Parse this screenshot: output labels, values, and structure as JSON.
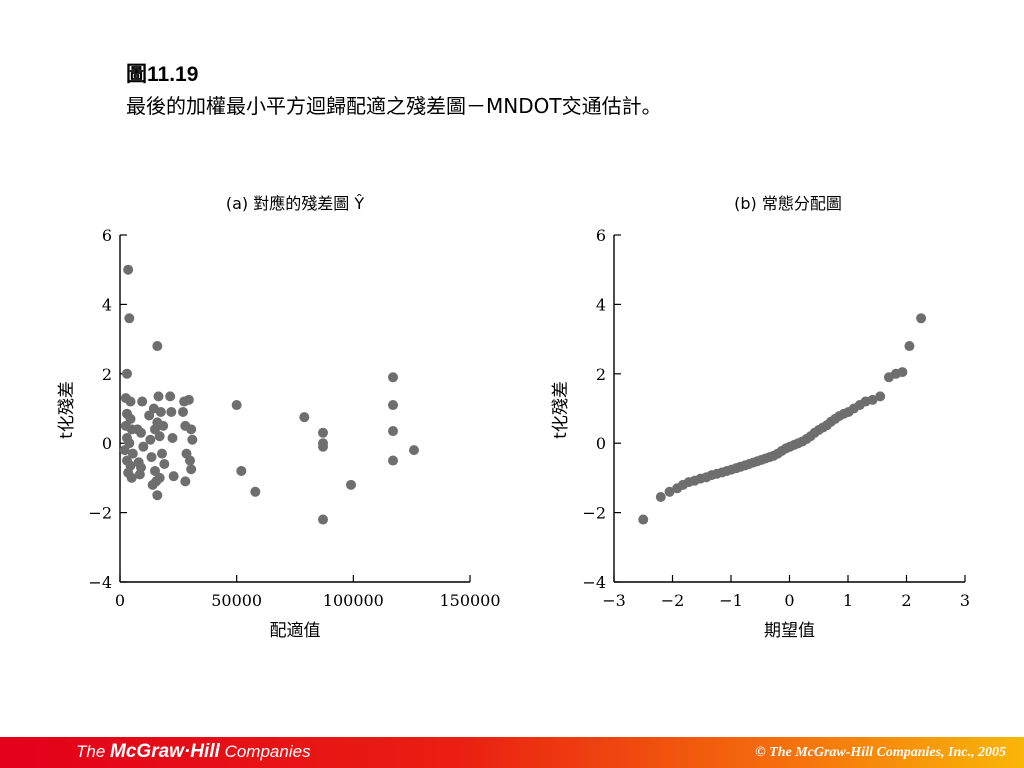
{
  "slide": {
    "title": "圖11.19",
    "subtitle": "最後的加權最小平方迴歸配適之殘差圖－MNDOT交通估計。"
  },
  "footer": {
    "logo_pre": "The",
    "logo_brand": "McGraw·Hill",
    "logo_post": "Companies",
    "copyright": "© The McGraw-Hill Companies, Inc., 2005"
  },
  "colors": {
    "point": "#6e6e6e",
    "axis": "#000000",
    "footer_start": "#e3001b",
    "footer_end": "#f9b707"
  },
  "chart_data": [
    {
      "type": "scatter",
      "title": "(a) 對應的殘差圖 Ŷ",
      "xlabel": "配適值",
      "ylabel": "t化殘差",
      "xlim": [
        0,
        150000
      ],
      "ylim": [
        -4,
        6
      ],
      "xticks": [
        0,
        50000,
        100000,
        150000
      ],
      "xtick_labels": [
        "0",
        "50000",
        "100000",
        "150000"
      ],
      "yticks": [
        -4,
        -2,
        0,
        2,
        4,
        6
      ],
      "ytick_labels": [
        "−4",
        "−2",
        "0",
        "2",
        "4",
        "6"
      ],
      "grid": false,
      "points": [
        [
          3500,
          5.0
        ],
        [
          4000,
          3.6
        ],
        [
          3000,
          2.0
        ],
        [
          2500,
          1.3
        ],
        [
          4500,
          1.2
        ],
        [
          3000,
          0.85
        ],
        [
          4500,
          0.7
        ],
        [
          2500,
          0.5
        ],
        [
          5000,
          0.4
        ],
        [
          3000,
          0.15
        ],
        [
          4000,
          0.0
        ],
        [
          2000,
          -0.2
        ],
        [
          5500,
          -0.3
        ],
        [
          3000,
          -0.5
        ],
        [
          4500,
          -0.65
        ],
        [
          3500,
          -0.85
        ],
        [
          5000,
          -1.0
        ],
        [
          7500,
          0.4
        ],
        [
          8000,
          -0.55
        ],
        [
          9000,
          0.3
        ],
        [
          8500,
          -0.9
        ],
        [
          9500,
          1.2
        ],
        [
          10000,
          -0.1
        ],
        [
          9000,
          -0.7
        ],
        [
          16000,
          2.8
        ],
        [
          12500,
          0.8
        ],
        [
          13000,
          0.1
        ],
        [
          13500,
          -0.4
        ],
        [
          14000,
          -1.2
        ],
        [
          15000,
          0.4
        ],
        [
          15000,
          -0.8
        ],
        [
          16000,
          0.6
        ],
        [
          16000,
          -1.5
        ],
        [
          16500,
          1.35
        ],
        [
          17000,
          0.2
        ],
        [
          17000,
          -1.0
        ],
        [
          17500,
          0.9
        ],
        [
          18000,
          -0.3
        ],
        [
          18500,
          0.5
        ],
        [
          19000,
          -0.6
        ],
        [
          15500,
          -1.1
        ],
        [
          14500,
          1.0
        ],
        [
          21500,
          1.35
        ],
        [
          22000,
          0.9
        ],
        [
          22500,
          0.15
        ],
        [
          23000,
          -0.95
        ],
        [
          27500,
          1.2
        ],
        [
          27000,
          0.9
        ],
        [
          28000,
          0.5
        ],
        [
          28500,
          -0.3
        ],
        [
          28000,
          -1.1
        ],
        [
          29500,
          1.25
        ],
        [
          30500,
          0.4
        ],
        [
          30000,
          -0.5
        ],
        [
          31000,
          0.1
        ],
        [
          30500,
          -0.75
        ],
        [
          50000,
          1.1
        ],
        [
          52000,
          -0.8
        ],
        [
          58000,
          -1.4
        ],
        [
          79000,
          0.75
        ],
        [
          87000,
          0.3
        ],
        [
          87000,
          0.0
        ],
        [
          87000,
          -0.1
        ],
        [
          87000,
          -2.2
        ],
        [
          99000,
          -1.2
        ],
        [
          117000,
          1.9
        ],
        [
          117000,
          1.1
        ],
        [
          117000,
          0.35
        ],
        [
          117000,
          -0.5
        ],
        [
          126000,
          -0.2
        ]
      ]
    },
    {
      "type": "scatter",
      "title": "(b) 常態分配圖",
      "xlabel": "期望值",
      "ylabel": "t化殘差",
      "xlim": [
        -3,
        3
      ],
      "ylim": [
        -4,
        6
      ],
      "xticks": [
        -3,
        -2,
        -1,
        0,
        1,
        2,
        3
      ],
      "xtick_labels": [
        "−3",
        "−2",
        "−1",
        "0",
        "1",
        "2",
        "3"
      ],
      "yticks": [
        -4,
        -2,
        0,
        2,
        4,
        6
      ],
      "ytick_labels": [
        "−4",
        "−2",
        "0",
        "2",
        "4",
        "6"
      ],
      "grid": false,
      "points": [
        [
          -2.5,
          -2.2
        ],
        [
          -2.2,
          -1.55
        ],
        [
          -2.05,
          -1.4
        ],
        [
          -1.92,
          -1.3
        ],
        [
          -1.82,
          -1.2
        ],
        [
          -1.72,
          -1.12
        ],
        [
          -1.62,
          -1.08
        ],
        [
          -1.52,
          -1.02
        ],
        [
          -1.42,
          -0.98
        ],
        [
          -1.33,
          -0.92
        ],
        [
          -1.24,
          -0.88
        ],
        [
          -1.15,
          -0.84
        ],
        [
          -1.07,
          -0.8
        ],
        [
          -0.99,
          -0.76
        ],
        [
          -0.91,
          -0.72
        ],
        [
          -0.84,
          -0.68
        ],
        [
          -0.76,
          -0.64
        ],
        [
          -0.69,
          -0.6
        ],
        [
          -0.62,
          -0.56
        ],
        [
          -0.55,
          -0.52
        ],
        [
          -0.48,
          -0.48
        ],
        [
          -0.41,
          -0.44
        ],
        [
          -0.34,
          -0.4
        ],
        [
          -0.27,
          -0.36
        ],
        [
          -0.2,
          -0.3
        ],
        [
          -0.13,
          -0.22
        ],
        [
          -0.06,
          -0.15
        ],
        [
          0.01,
          -0.1
        ],
        [
          0.08,
          -0.05
        ],
        [
          0.15,
          0.0
        ],
        [
          0.22,
          0.05
        ],
        [
          0.29,
          0.12
        ],
        [
          0.36,
          0.2
        ],
        [
          0.43,
          0.3
        ],
        [
          0.5,
          0.38
        ],
        [
          0.57,
          0.45
        ],
        [
          0.64,
          0.52
        ],
        [
          0.71,
          0.62
        ],
        [
          0.78,
          0.7
        ],
        [
          0.85,
          0.78
        ],
        [
          0.93,
          0.85
        ],
        [
          1.01,
          0.9
        ],
        [
          1.1,
          1.0
        ],
        [
          1.2,
          1.1
        ],
        [
          1.3,
          1.2
        ],
        [
          1.42,
          1.25
        ],
        [
          1.55,
          1.35
        ],
        [
          1.7,
          1.9
        ],
        [
          1.82,
          2.0
        ],
        [
          1.93,
          2.05
        ],
        [
          2.05,
          2.8
        ],
        [
          2.25,
          3.6
        ]
      ]
    }
  ]
}
